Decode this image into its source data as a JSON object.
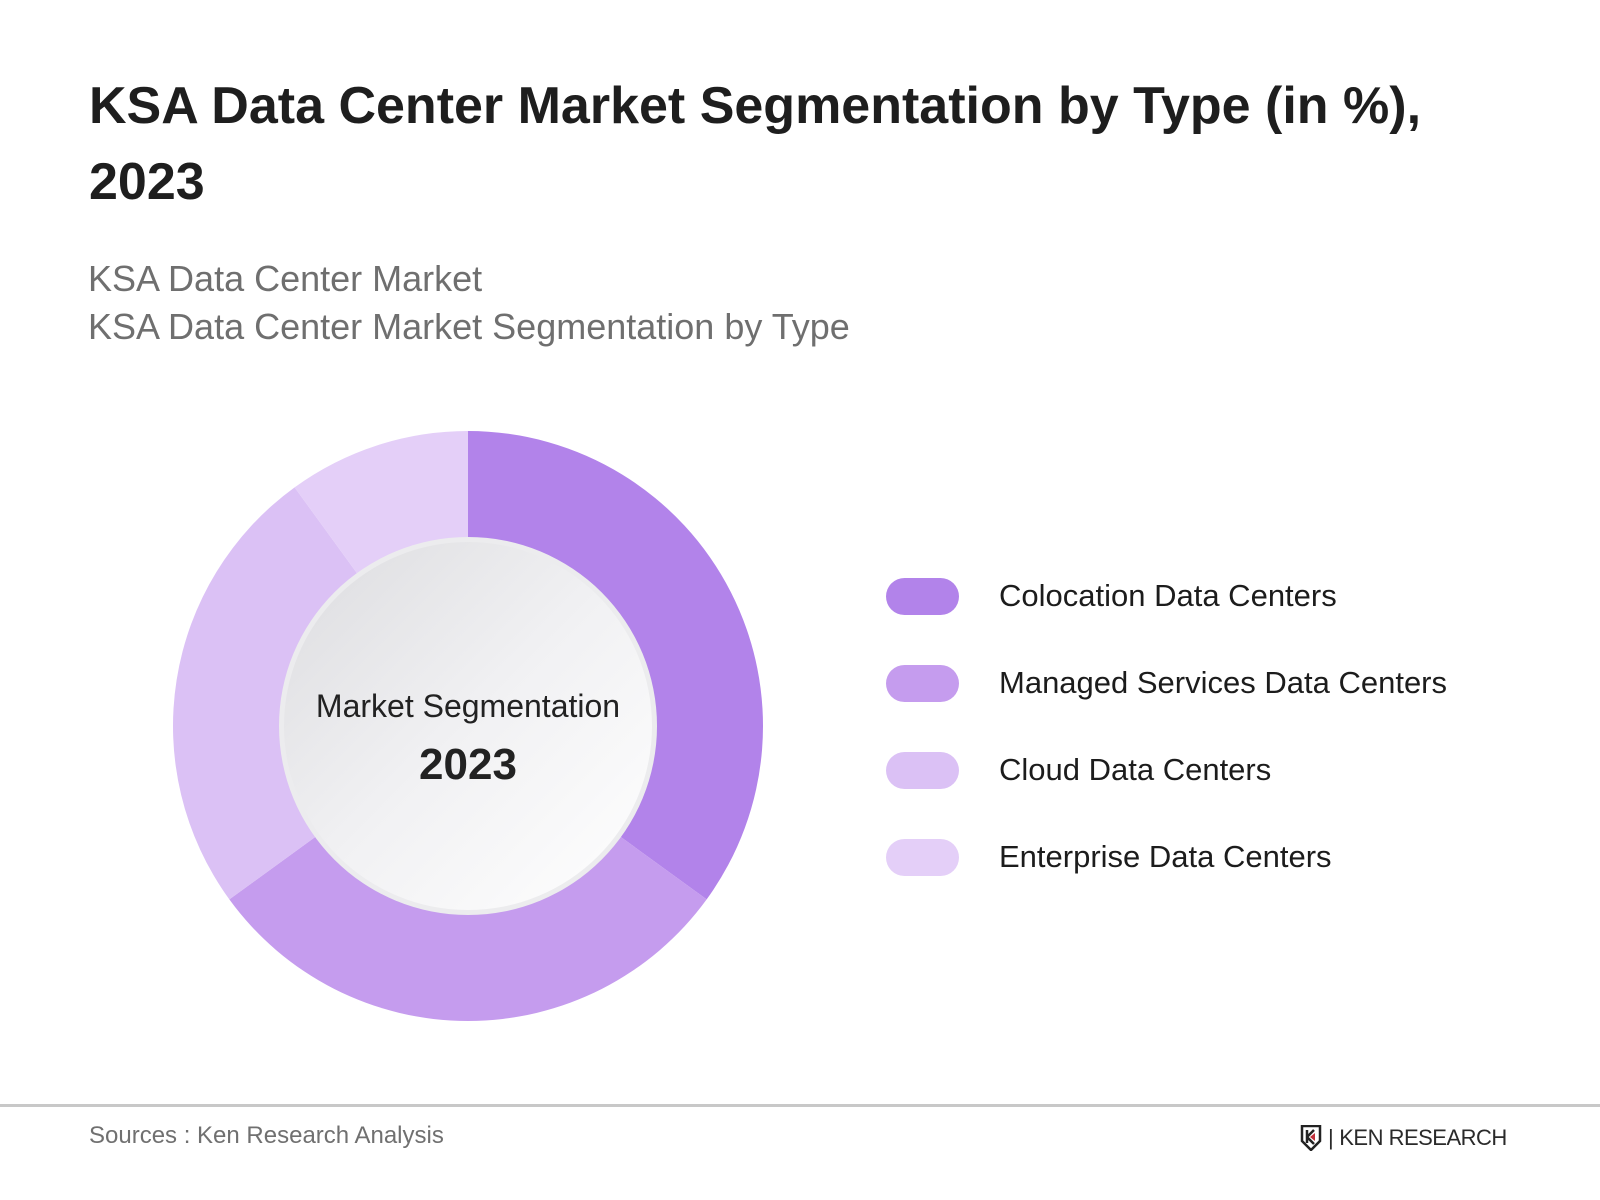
{
  "title": "KSA Data Center Market Segmentation by Type (in %), 2023",
  "subtitle_lines": [
    "KSA Data Center Market",
    "KSA Data Center Market Segmentation by Type"
  ],
  "chart_data": {
    "type": "pie",
    "variant": "donut",
    "center_label": "Market Segmentation",
    "center_year": "2023",
    "categories": [
      "Colocation Data Centers",
      "Managed Services Data Centers",
      "Cloud Data Centers",
      "Enterprise Data Centers"
    ],
    "values": [
      35,
      30,
      25,
      10
    ],
    "colors": [
      "#b283ea",
      "#c59cee",
      "#dbc1f5",
      "#e4cff8"
    ],
    "legend_position": "right",
    "data_labels_shown": false
  },
  "footer": {
    "source": "Sources : Ken Research Analysis",
    "logo": "KEN RESEARCH"
  }
}
